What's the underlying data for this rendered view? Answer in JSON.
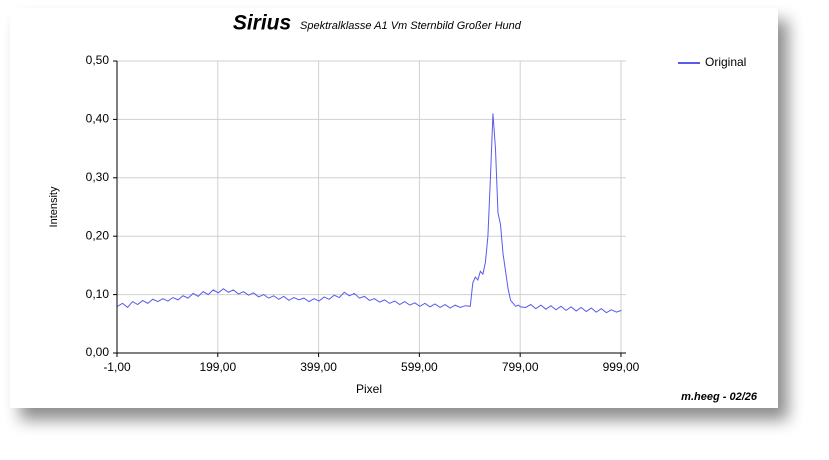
{
  "chart_data": {
    "type": "line",
    "title": "Sirius",
    "subtitle": "Spektralklasse A1 Vm  Sternbild Großer Hund",
    "x_label": "Pixel",
    "y_label": "Intensity",
    "annotation": "m.heeg - 02/26",
    "legend": "top-right",
    "grid": true,
    "xlim": [
      -1,
      1009
    ],
    "ylim": [
      0,
      0.5
    ],
    "xticks": [
      {
        "value": -1,
        "label": "-1,00"
      },
      {
        "value": 199,
        "label": "199,00"
      },
      {
        "value": 399,
        "label": "399,00"
      },
      {
        "value": 599,
        "label": "599,00"
      },
      {
        "value": 799,
        "label": "799,00"
      },
      {
        "value": 999,
        "label": "999,00"
      }
    ],
    "yticks": [
      {
        "value": 0,
        "label": "0,00"
      },
      {
        "value": 0.1,
        "label": "0,10"
      },
      {
        "value": 0.2,
        "label": "0,20"
      },
      {
        "value": 0.3,
        "label": "0,30"
      },
      {
        "value": 0.4,
        "label": "0,40"
      },
      {
        "value": 0.5,
        "label": "0,50"
      }
    ],
    "x": [
      0,
      10,
      20,
      30,
      40,
      50,
      60,
      70,
      80,
      90,
      100,
      110,
      120,
      130,
      140,
      150,
      160,
      170,
      180,
      190,
      200,
      210,
      220,
      230,
      240,
      250,
      260,
      270,
      280,
      290,
      300,
      310,
      320,
      330,
      340,
      350,
      360,
      370,
      380,
      390,
      400,
      410,
      420,
      430,
      440,
      450,
      460,
      470,
      480,
      490,
      500,
      510,
      520,
      530,
      540,
      550,
      560,
      570,
      580,
      590,
      600,
      610,
      620,
      630,
      640,
      650,
      660,
      670,
      680,
      690,
      700,
      705,
      710,
      715,
      720,
      725,
      730,
      735,
      740,
      745,
      750,
      755,
      760,
      765,
      770,
      775,
      780,
      785,
      790,
      795,
      800,
      810,
      820,
      830,
      840,
      850,
      860,
      870,
      880,
      890,
      900,
      910,
      920,
      930,
      940,
      950,
      960,
      970,
      980,
      990,
      1000
    ],
    "series": [
      {
        "name": "Original",
        "color": "#5a5aeb",
        "values": [
          0.08,
          0.085,
          0.078,
          0.088,
          0.083,
          0.09,
          0.085,
          0.092,
          0.088,
          0.093,
          0.089,
          0.095,
          0.091,
          0.098,
          0.094,
          0.102,
          0.097,
          0.105,
          0.1,
          0.108,
          0.103,
          0.11,
          0.104,
          0.108,
          0.101,
          0.105,
          0.099,
          0.103,
          0.096,
          0.1,
          0.094,
          0.098,
          0.092,
          0.097,
          0.09,
          0.095,
          0.091,
          0.094,
          0.088,
          0.093,
          0.089,
          0.096,
          0.092,
          0.099,
          0.095,
          0.104,
          0.098,
          0.102,
          0.094,
          0.097,
          0.09,
          0.093,
          0.087,
          0.091,
          0.085,
          0.089,
          0.083,
          0.088,
          0.082,
          0.086,
          0.08,
          0.085,
          0.079,
          0.084,
          0.078,
          0.083,
          0.077,
          0.082,
          0.078,
          0.081,
          0.08,
          0.12,
          0.13,
          0.125,
          0.14,
          0.135,
          0.155,
          0.2,
          0.3,
          0.41,
          0.35,
          0.24,
          0.22,
          0.17,
          0.14,
          0.11,
          0.09,
          0.085,
          0.08,
          0.082,
          0.079,
          0.078,
          0.083,
          0.076,
          0.082,
          0.075,
          0.081,
          0.074,
          0.08,
          0.073,
          0.079,
          0.072,
          0.078,
          0.071,
          0.077,
          0.07,
          0.076,
          0.069,
          0.074,
          0.07,
          0.073
        ]
      }
    ]
  }
}
